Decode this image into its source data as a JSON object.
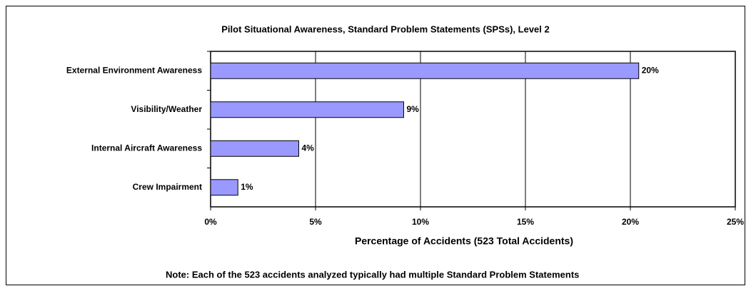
{
  "chart_data": {
    "type": "bar",
    "orientation": "horizontal",
    "title": "Pilot Situational Awareness, Standard Problem Statements (SPSs), Level 2",
    "x_label": "Percentage of Accidents (523 Total Accidents)",
    "annotation": "Note:  Each of the 523 accidents analyzed typically had multiple Standard Problem Statements",
    "categories": [
      "External Environment Awareness",
      "Visibility/Weather",
      "Internal Aircraft Awareness",
      "Crew Impairment"
    ],
    "values": [
      20.4,
      9.2,
      4.2,
      1.3
    ],
    "value_labels": [
      "20%",
      "9%",
      "4%",
      "1%"
    ],
    "color": "#9999ff",
    "xlim": [
      0,
      25
    ],
    "xticks": [
      {
        "value": 0,
        "label": "0%"
      },
      {
        "value": 5,
        "label": "5%"
      },
      {
        "value": 10,
        "label": "10%"
      },
      {
        "value": 15,
        "label": "15%"
      },
      {
        "value": 20,
        "label": "20%"
      },
      {
        "value": 25,
        "label": "25%"
      }
    ],
    "grid": true
  }
}
